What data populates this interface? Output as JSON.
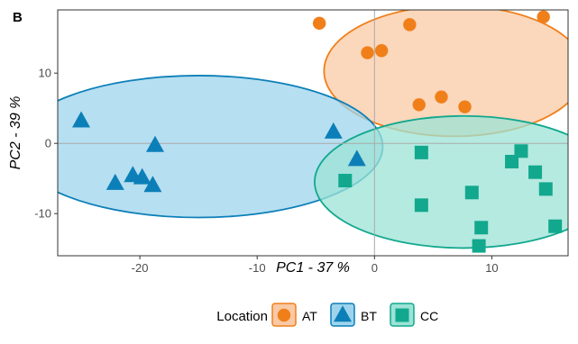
{
  "panel_label": "B",
  "chart_data": {
    "type": "scatter",
    "xlabel": "PC1 - 37 %",
    "ylabel": "PC2 - 39 %",
    "xlim": [
      -27,
      16.5
    ],
    "ylim": [
      -16,
      19
    ],
    "x_ticks": [
      -20,
      -10,
      0,
      10
    ],
    "y_ticks": [
      -10,
      0,
      10
    ],
    "zero_lines": true,
    "grid": false,
    "legend": {
      "title": "Location",
      "position": "bottom"
    },
    "series": [
      {
        "name": "AT",
        "marker": "circle",
        "color": "#F07F1A",
        "fill": "#F9C9A6",
        "ellipse": {
          "cx": 6.8,
          "cy": 10.3,
          "rx": 11.1,
          "ry": 9.3
        },
        "points": [
          [
            -4.7,
            17.1
          ],
          [
            -0.6,
            12.9
          ],
          [
            0.6,
            13.2
          ],
          [
            3.0,
            16.9
          ],
          [
            14.4,
            18.0
          ],
          [
            3.8,
            5.5
          ],
          [
            5.7,
            6.6
          ],
          [
            7.7,
            5.2
          ]
        ]
      },
      {
        "name": "BT",
        "marker": "triangle",
        "color": "#0C7FB8",
        "fill": "#9DD4EC",
        "ellipse": {
          "cx": -15.0,
          "cy": -0.45,
          "rx": 15.7,
          "ry": 10.1
        },
        "points": [
          [
            -25.0,
            3.2
          ],
          [
            -18.7,
            -0.3
          ],
          [
            -20.6,
            -4.6
          ],
          [
            -19.8,
            -4.9
          ],
          [
            -22.1,
            -5.7
          ],
          [
            -18.9,
            -6.0
          ],
          [
            -3.5,
            1.6
          ],
          [
            -1.5,
            -2.3
          ]
        ]
      },
      {
        "name": "CC",
        "marker": "square",
        "color": "#12A88E",
        "fill": "#9CE3D6",
        "ellipse": {
          "cx": 7.6,
          "cy": -5.5,
          "rx": 12.7,
          "ry": 9.4
        },
        "points": [
          [
            -2.5,
            -5.3
          ],
          [
            4.0,
            -1.3
          ],
          [
            4.0,
            -8.8
          ],
          [
            8.3,
            -7.0
          ],
          [
            9.1,
            -12.0
          ],
          [
            8.9,
            -14.6
          ],
          [
            11.7,
            -2.6
          ],
          [
            12.5,
            -1.1
          ],
          [
            13.7,
            -4.1
          ],
          [
            14.6,
            -6.5
          ],
          [
            15.4,
            -11.8
          ]
        ]
      }
    ]
  }
}
